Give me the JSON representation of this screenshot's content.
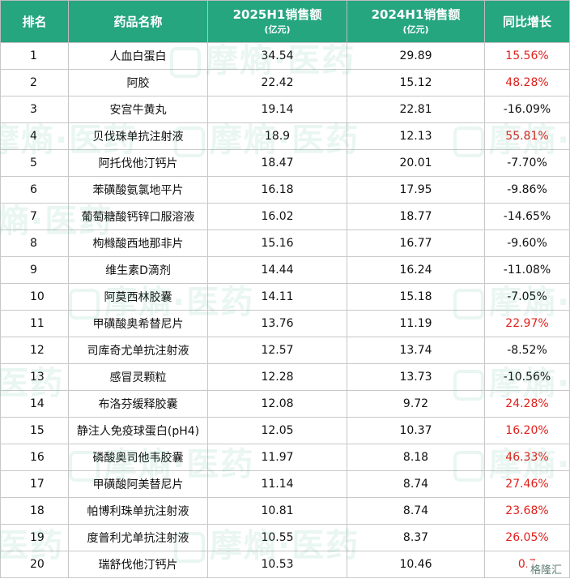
{
  "header": {
    "rank": "排名",
    "name": "药品名称",
    "sales_2025": "2025H1销售额",
    "sales_2025_unit": "(亿元)",
    "sales_2024": "2024H1销售额",
    "sales_2024_unit": "(亿元)",
    "growth": "同比增长"
  },
  "rows": [
    {
      "rank": "1",
      "name": "人血白蛋白",
      "sales_2025": "34.54",
      "sales_2024": "29.89",
      "growth": "15.56%",
      "positive": true
    },
    {
      "rank": "2",
      "name": "阿胶",
      "sales_2025": "22.42",
      "sales_2024": "15.12",
      "growth": "48.28%",
      "positive": true
    },
    {
      "rank": "3",
      "name": "安宫牛黄丸",
      "sales_2025": "19.14",
      "sales_2024": "22.81",
      "growth": "-16.09%",
      "positive": false
    },
    {
      "rank": "4",
      "name": "贝伐珠单抗注射液",
      "sales_2025": "18.9",
      "sales_2024": "12.13",
      "growth": "55.81%",
      "positive": true
    },
    {
      "rank": "5",
      "name": "阿托伐他汀钙片",
      "sales_2025": "18.47",
      "sales_2024": "20.01",
      "growth": "-7.70%",
      "positive": false
    },
    {
      "rank": "6",
      "name": "苯磺酸氨氯地平片",
      "sales_2025": "16.18",
      "sales_2024": "17.95",
      "growth": "-9.86%",
      "positive": false
    },
    {
      "rank": "7",
      "name": "葡萄糖酸钙锌口服溶液",
      "sales_2025": "16.02",
      "sales_2024": "18.77",
      "growth": "-14.65%",
      "positive": false
    },
    {
      "rank": "8",
      "name": "枸橼酸西地那非片",
      "sales_2025": "15.16",
      "sales_2024": "16.77",
      "growth": "-9.60%",
      "positive": false
    },
    {
      "rank": "9",
      "name": "维生素D滴剂",
      "sales_2025": "14.44",
      "sales_2024": "16.24",
      "growth": "-11.08%",
      "positive": false
    },
    {
      "rank": "10",
      "name": "阿莫西林胶囊",
      "sales_2025": "14.11",
      "sales_2024": "15.18",
      "growth": "-7.05%",
      "positive": false
    },
    {
      "rank": "11",
      "name": "甲磺酸奥希替尼片",
      "sales_2025": "13.76",
      "sales_2024": "11.19",
      "growth": "22.97%",
      "positive": true
    },
    {
      "rank": "12",
      "name": "司库奇尤单抗注射液",
      "sales_2025": "12.57",
      "sales_2024": "13.74",
      "growth": "-8.52%",
      "positive": false
    },
    {
      "rank": "13",
      "name": "感冒灵颗粒",
      "sales_2025": "12.28",
      "sales_2024": "13.73",
      "growth": "-10.56%",
      "positive": false
    },
    {
      "rank": "14",
      "name": "布洛芬缓释胶囊",
      "sales_2025": "12.08",
      "sales_2024": "9.72",
      "growth": "24.28%",
      "positive": true
    },
    {
      "rank": "15",
      "name": "静注人免疫球蛋白(pH4)",
      "sales_2025": "12.05",
      "sales_2024": "10.37",
      "growth": "16.20%",
      "positive": true
    },
    {
      "rank": "16",
      "name": "磷酸奥司他韦胶囊",
      "sales_2025": "11.97",
      "sales_2024": "8.18",
      "growth": "46.33%",
      "positive": true
    },
    {
      "rank": "17",
      "name": "甲磺酸阿美替尼片",
      "sales_2025": "11.14",
      "sales_2024": "8.74",
      "growth": "27.46%",
      "positive": true
    },
    {
      "rank": "18",
      "name": "帕博利珠单抗注射液",
      "sales_2025": "10.81",
      "sales_2024": "8.74",
      "growth": "23.68%",
      "positive": true
    },
    {
      "rank": "19",
      "name": "度普利尤单抗注射液",
      "sales_2025": "10.55",
      "sales_2024": "8.37",
      "growth": "26.05%",
      "positive": true
    },
    {
      "rank": "20",
      "name": "瑞舒伐他汀钙片",
      "sales_2025": "10.53",
      "sales_2024": "10.46",
      "growth": "0.7",
      "positive": true
    }
  ],
  "watermark": "摩熵·医药",
  "corner_logo": "格隆汇",
  "colors": {
    "header_bg": "#26a67f",
    "positive": "#e0201b",
    "negative": "#111111"
  }
}
